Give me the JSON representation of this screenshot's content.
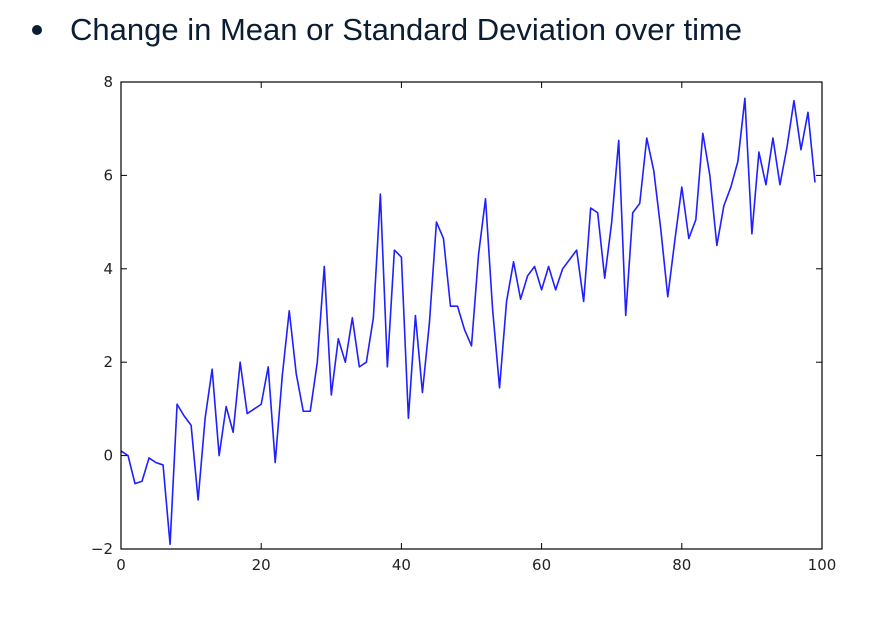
{
  "slide": {
    "bullet_text": "Change in Mean or Standard Deviation over time"
  },
  "colors": {
    "text": "#0b1d33",
    "series_line": "#1f1fff",
    "axes": "#000000"
  },
  "chart_data": {
    "type": "line",
    "title": "",
    "xlabel": "",
    "ylabel": "",
    "xlim": [
      0,
      100
    ],
    "ylim": [
      -2,
      8
    ],
    "xticks": [
      0,
      20,
      40,
      60,
      80,
      100
    ],
    "xtick_labels": [
      "0",
      "20",
      "40",
      "60",
      "80",
      "100"
    ],
    "yticks": [
      -2,
      0,
      2,
      4,
      6,
      8
    ],
    "ytick_labels": [
      "−2",
      "0",
      "2",
      "4",
      "6",
      "8"
    ],
    "grid": false,
    "legend": "none",
    "series": [
      {
        "x": [
          0,
          1,
          2,
          3,
          4,
          5,
          6,
          7,
          8,
          9,
          10,
          11,
          12,
          13,
          14,
          15,
          16,
          17,
          18,
          19,
          20,
          21,
          22,
          23,
          24,
          25,
          26,
          27,
          28,
          29,
          30,
          31,
          32,
          33,
          34,
          35,
          36,
          37,
          38,
          39,
          40,
          41,
          42,
          43,
          44,
          45,
          46,
          47,
          48,
          49,
          50,
          51,
          52,
          53,
          54,
          55,
          56,
          57,
          58,
          59,
          60,
          61,
          62,
          63,
          64,
          65,
          66,
          67,
          68,
          69,
          70,
          71,
          72,
          73,
          74,
          75,
          76,
          77,
          78,
          79,
          80,
          81,
          82,
          83,
          84,
          85,
          86,
          87,
          88,
          89,
          90,
          91,
          92,
          93,
          94,
          95,
          96,
          97,
          98,
          99,
          100
        ],
        "y": [
          0.1,
          0.0,
          -0.6,
          -0.55,
          -0.05,
          -0.15,
          -0.2,
          -1.9,
          1.1,
          0.85,
          0.65,
          -0.95,
          0.8,
          1.85,
          0.0,
          1.05,
          0.5,
          2.0,
          0.9,
          1.0,
          1.1,
          1.9,
          -0.15,
          1.7,
          3.1,
          1.75,
          0.95,
          0.95,
          2.0,
          4.05,
          1.3,
          2.5,
          2.0,
          2.95,
          1.9,
          2.0,
          2.95,
          5.6,
          1.9,
          4.4,
          4.25,
          0.8,
          3.0,
          1.35,
          2.85,
          5.0,
          4.65,
          3.2,
          3.2,
          2.7,
          2.35,
          4.3,
          5.5,
          3.15,
          1.45,
          3.3,
          4.15,
          3.35,
          3.85,
          4.05,
          3.55,
          4.05,
          3.55,
          4.0,
          4.2,
          4.4,
          3.3,
          5.3,
          5.2,
          3.8,
          5.0,
          6.75,
          3.0,
          5.2,
          5.4,
          6.8,
          6.1,
          4.85,
          3.4,
          4.6,
          5.75,
          4.65,
          5.05,
          6.9,
          6.0,
          4.5,
          5.35,
          5.75,
          6.3,
          7.65,
          4.75,
          6.5,
          5.8,
          6.8,
          5.8,
          6.6,
          7.6,
          6.55,
          7.35,
          5.85,
          null
        ]
      }
    ]
  }
}
